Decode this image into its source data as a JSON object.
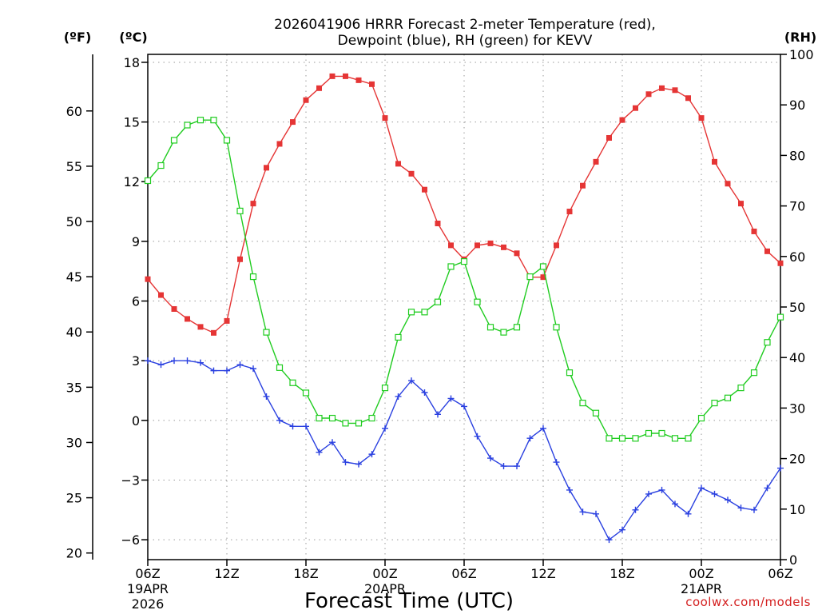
{
  "chart_data": {
    "type": "line",
    "title_line1": "2026041906 HRRR Forecast 2-meter Temperature (red),",
    "title_line2": "Dewpoint (blue), RH (green) for KEVV",
    "units": {
      "fahrenheit": "(ºF)",
      "celsius": "(ºC)",
      "rh": "(RH)"
    },
    "xlabel": "Forecast Time (UTC)",
    "credit": "coolwx.com/models",
    "x_ticks": [
      {
        "hour": 0,
        "label": "06Z",
        "date": "19APR",
        "year": "2026"
      },
      {
        "hour": 6,
        "label": "12Z",
        "date": "",
        "year": ""
      },
      {
        "hour": 12,
        "label": "18Z",
        "date": "",
        "year": ""
      },
      {
        "hour": 18,
        "label": "00Z",
        "date": "20APR",
        "year": ""
      },
      {
        "hour": 24,
        "label": "06Z",
        "date": "",
        "year": ""
      },
      {
        "hour": 30,
        "label": "12Z",
        "date": "",
        "year": ""
      },
      {
        "hour": 36,
        "label": "18Z",
        "date": "",
        "year": ""
      },
      {
        "hour": 42,
        "label": "00Z",
        "date": "21APR",
        "year": ""
      },
      {
        "hour": 48,
        "label": "06Z",
        "date": "",
        "year": ""
      }
    ],
    "x_range": [
      0,
      48
    ],
    "celsius_range": [
      -7,
      18.4
    ],
    "celsius_ticks": [
      "18",
      "15",
      "12",
      "9",
      "6",
      "3",
      "0",
      "−3",
      "−6"
    ],
    "fahrenheit_ticks": [
      "60",
      "55",
      "50",
      "45",
      "40",
      "35",
      "30",
      "25",
      "20"
    ],
    "rh_range": [
      0,
      100
    ],
    "rh_ticks": [
      "100",
      "90",
      "80",
      "70",
      "60",
      "50",
      "40",
      "30",
      "20",
      "10",
      "0"
    ],
    "colors": {
      "temperature": "#e53535",
      "dewpoint": "#2a40e0",
      "rh": "#20cc20"
    },
    "series": [
      {
        "name": "Temperature",
        "unit": "C",
        "values": [
          7.1,
          6.3,
          5.6,
          5.1,
          4.7,
          4.4,
          5.0,
          8.1,
          10.9,
          12.7,
          13.9,
          15.0,
          16.1,
          16.7,
          17.3,
          17.3,
          17.1,
          16.9,
          15.2,
          12.9,
          12.4,
          11.6,
          9.9,
          8.8,
          8.1,
          8.8,
          8.9,
          8.7,
          8.4,
          7.2,
          7.2,
          8.8,
          10.5,
          11.8,
          13.0,
          14.2,
          15.1,
          15.7,
          16.4,
          16.7,
          16.6,
          16.2,
          15.2,
          13.0,
          11.9,
          10.9,
          9.5,
          8.5,
          7.9
        ]
      },
      {
        "name": "Dewpoint",
        "unit": "C",
        "values": [
          3.0,
          2.8,
          3.0,
          3.0,
          2.9,
          2.5,
          2.5,
          2.8,
          2.6,
          1.2,
          0.0,
          -0.3,
          -0.3,
          -1.6,
          -1.1,
          -2.1,
          -2.2,
          -1.7,
          -0.4,
          1.2,
          2.0,
          1.4,
          0.3,
          1.1,
          0.7,
          -0.8,
          -1.9,
          -2.3,
          -2.3,
          -0.9,
          -0.4,
          -2.1,
          -3.5,
          -4.6,
          -4.7,
          -6.0,
          -5.5,
          -4.5,
          -3.7,
          -3.5,
          -4.2,
          -4.7,
          -3.4,
          -3.7,
          -4.0,
          -4.4,
          -4.5,
          -3.4,
          -2.4
        ]
      },
      {
        "name": "RH",
        "unit": "%",
        "values": [
          75,
          78,
          83,
          86,
          87,
          87,
          83,
          69,
          56,
          45,
          38,
          35,
          33,
          28,
          28,
          27,
          27,
          28,
          34,
          44,
          49,
          49,
          51,
          58,
          59,
          51,
          46,
          45,
          46,
          56,
          58,
          46,
          37,
          31,
          29,
          24,
          24,
          24,
          25,
          25,
          24,
          24,
          28,
          31,
          32,
          34,
          37,
          43,
          48
        ]
      }
    ]
  }
}
